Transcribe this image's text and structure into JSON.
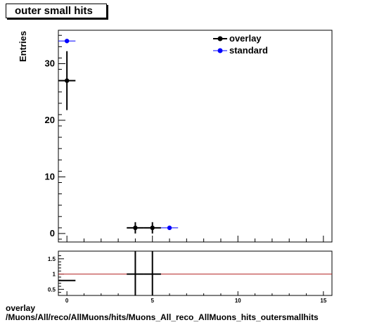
{
  "title": "outer small hits",
  "footer": {
    "line1": "overlay",
    "line2": "/Muons/All/reco/AllMuons/hits/Muons_All_reco_AllMuons_hits_outersmallhits"
  },
  "chart_data": [
    {
      "type": "scatter",
      "title": "outer small hits",
      "ylabel": "Entries",
      "xlim": [
        -0.5,
        15.5
      ],
      "ylim": [
        -1.5,
        35.9
      ],
      "x_ticks": [
        0,
        5,
        10,
        15
      ],
      "y_ticks": [
        0,
        10,
        20,
        30
      ],
      "legend": {
        "placement": "top-right",
        "entries": [
          "overlay",
          "standard"
        ]
      },
      "series": [
        {
          "name": "overlay",
          "color": "#000000",
          "points": [
            {
              "x": 0,
              "y": 27,
              "xerr": 0.5,
              "yerr": 5.2
            },
            {
              "x": 4,
              "y": 1,
              "xerr": 0.5,
              "yerr": 1
            },
            {
              "x": 5,
              "y": 1,
              "xerr": 0.5,
              "yerr": 1
            }
          ]
        },
        {
          "name": "standard",
          "color": "#0000ff",
          "points": [
            {
              "x": 0,
              "y": 34,
              "xerr": 0.5,
              "yerr": 0
            },
            {
              "x": 6,
              "y": 1,
              "xerr": 0.5,
              "yerr": 0
            }
          ]
        }
      ]
    },
    {
      "type": "scatter",
      "title": "",
      "xlim": [
        -0.5,
        15.5
      ],
      "ylim": [
        0.3,
        1.75
      ],
      "x_ticks": [
        0,
        5,
        10,
        15
      ],
      "y_ticks": [
        0.5,
        1,
        1.5
      ],
      "reference_line": {
        "y": 1,
        "color": "#b22222"
      },
      "series": [
        {
          "name": "ratio",
          "color": "#000000",
          "points": [
            {
              "x": 0,
              "y": 0.79,
              "xerr": 0.5,
              "yerr": 0
            },
            {
              "x": 4,
              "y": 1,
              "xerr": 0.5,
              "yerr": 1
            },
            {
              "x": 5,
              "y": 1,
              "xerr": 0.5,
              "yerr": 1
            }
          ]
        }
      ]
    }
  ]
}
